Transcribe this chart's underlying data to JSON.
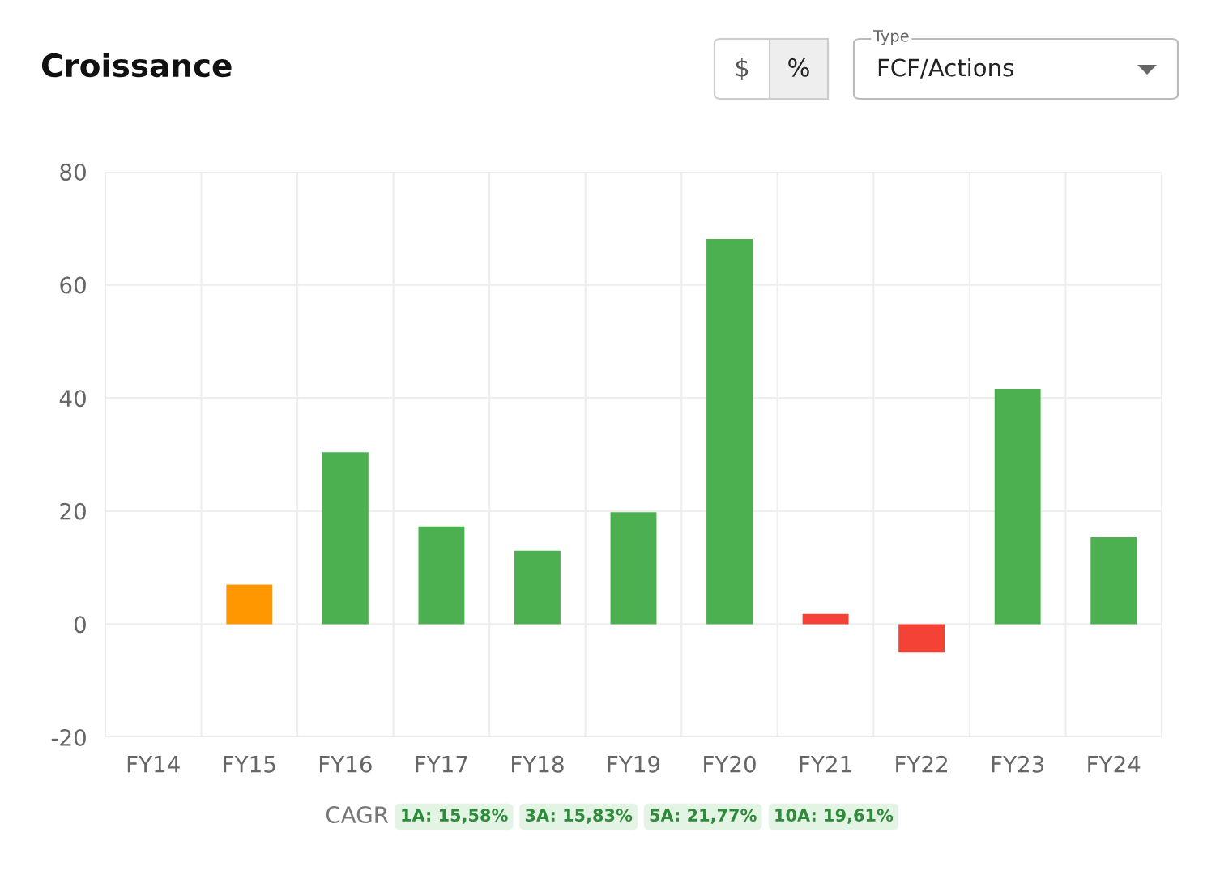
{
  "chart_data": {
    "type": "bar",
    "title": "Croissance",
    "categories": [
      "FY14",
      "FY15",
      "FY16",
      "FY17",
      "FY18",
      "FY19",
      "FY20",
      "FY21",
      "FY22",
      "FY23",
      "FY24"
    ],
    "values": [
      null,
      7.0,
      30.4,
      17.3,
      13.0,
      19.8,
      68.1,
      1.8,
      -5.0,
      41.6,
      15.4
    ],
    "colors": [
      "#4caf50",
      "#ff9800",
      "#4caf50",
      "#4caf50",
      "#4caf50",
      "#4caf50",
      "#4caf50",
      "#f44336",
      "#f44336",
      "#4caf50",
      "#4caf50"
    ],
    "ylim": [
      -20,
      80
    ],
    "yticks": [
      -20,
      0,
      20,
      40,
      60,
      80
    ],
    "grid": true,
    "annotations": [
      "$",
      "%",
      "Type",
      "FCF/Actions",
      "CAGR",
      "1A: 15,58%",
      "3A: 15,83%",
      "5A: 21,77%",
      "10A: 19,61%"
    ]
  }
}
